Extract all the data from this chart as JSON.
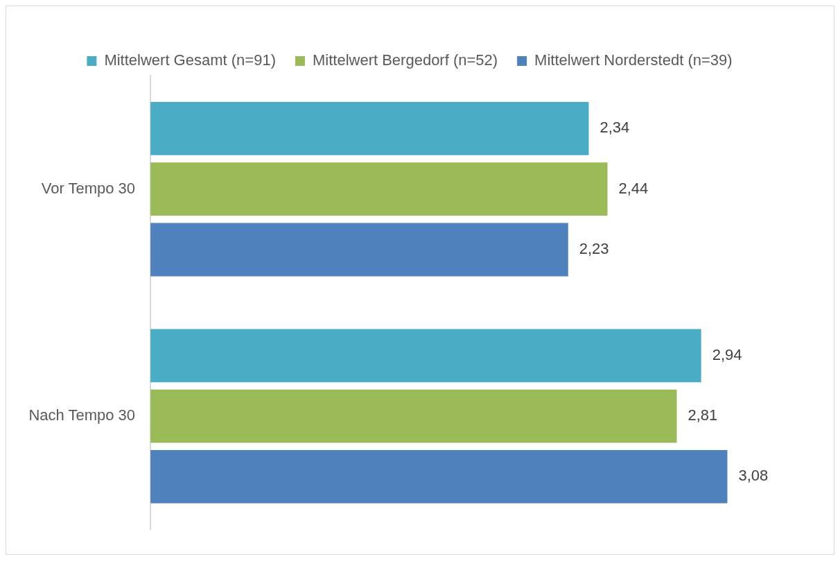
{
  "chart_data": {
    "type": "bar",
    "orientation": "horizontal",
    "categories": [
      "Vor Tempo 30",
      "Nach Tempo 30"
    ],
    "series": [
      {
        "name": "Mittelwert Gesamt (n=91)",
        "color": "#4bacc6",
        "values": [
          2.34,
          2.94
        ],
        "value_labels": [
          "2,34",
          "2,94"
        ]
      },
      {
        "name": "Mittelwert Bergedorf (n=52)",
        "color": "#9bbb59",
        "values": [
          2.44,
          2.81
        ],
        "value_labels": [
          "2,44",
          "2,81"
        ]
      },
      {
        "name": "Mittelwert Norderstedt (n=39)",
        "color": "#4f81bd",
        "values": [
          2.23,
          3.08
        ],
        "value_labels": [
          "2,23",
          "3,08"
        ]
      }
    ],
    "legend": "top"
  }
}
